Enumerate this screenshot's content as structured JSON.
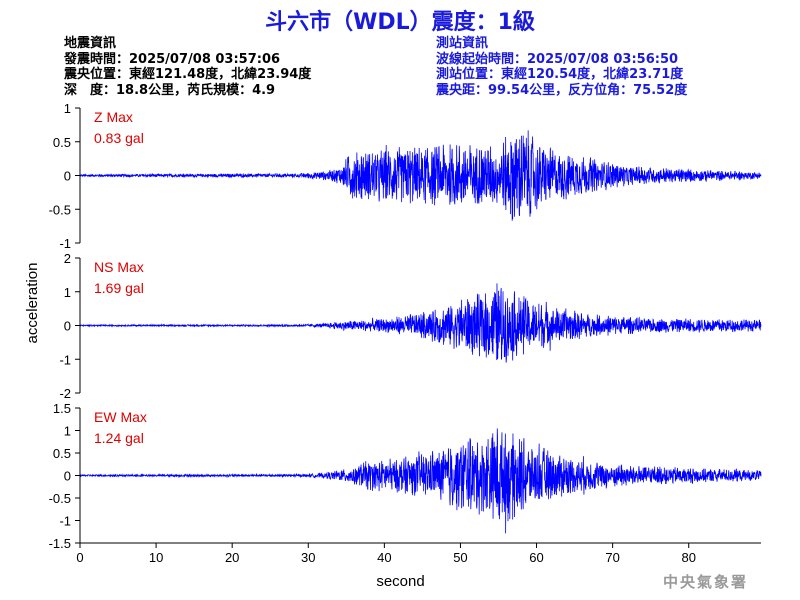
{
  "title": "斗六市（WDL）震度：1級",
  "earthquake_info": {
    "heading": "地震資訊",
    "origin_time": "發震時間：2025/07/08 03:57:06",
    "epicenter": "震央位置：東經121.48度，北緯23.94度",
    "depth_magnitude": "深　度：18.8公里，芮氏規模：4.9"
  },
  "station_info": {
    "heading": "測站資訊",
    "wave_start": "波線起始時間：2025/07/08 03:56:50",
    "station_location": "測站位置：東經120.54度，北緯23.71度",
    "distance_azimuth": "震央距：99.54公里，反方位角：75.52度"
  },
  "agency": "中央氣象署",
  "colors": {
    "trace": "#0000ff",
    "max_label": "#e00000",
    "title": "#1a1adc",
    "station_info": "#1a1adc"
  },
  "chart_data": [
    {
      "type": "line",
      "component": "Z",
      "max_label": "Z Max",
      "max_value": "0.83 gal",
      "ylim": [
        -1,
        1
      ],
      "yticks": [
        -1,
        -0.5,
        0,
        0.5,
        1
      ],
      "ytick_labels": [
        "-1",
        "-0.5",
        "0",
        "0.5",
        "1"
      ],
      "envelope": [
        [
          0,
          0.02
        ],
        [
          29,
          0.03
        ],
        [
          31,
          0.06
        ],
        [
          33,
          0.08
        ],
        [
          34.5,
          0.15
        ],
        [
          35.5,
          0.38
        ],
        [
          38,
          0.4
        ],
        [
          45,
          0.45
        ],
        [
          50,
          0.5
        ],
        [
          55,
          0.45
        ],
        [
          57,
          0.75
        ],
        [
          58,
          0.75
        ],
        [
          62,
          0.4
        ],
        [
          68,
          0.25
        ],
        [
          72,
          0.15
        ],
        [
          80,
          0.1
        ],
        [
          89.5,
          0.05
        ]
      ]
    },
    {
      "type": "line",
      "component": "NS",
      "max_label": "NS Max",
      "max_value": "1.69 gal",
      "ylim": [
        -2,
        2
      ],
      "yticks": [
        -2,
        -1,
        0,
        1,
        2
      ],
      "ytick_labels": [
        "-2",
        "-1",
        "0",
        "1",
        "2"
      ],
      "envelope": [
        [
          0,
          0.02
        ],
        [
          29,
          0.03
        ],
        [
          32,
          0.06
        ],
        [
          35,
          0.15
        ],
        [
          40,
          0.2
        ],
        [
          45,
          0.4
        ],
        [
          50,
          0.8
        ],
        [
          53,
          1.0
        ],
        [
          54.5,
          1.35
        ],
        [
          56,
          1.25
        ],
        [
          58,
          0.9
        ],
        [
          62,
          0.6
        ],
        [
          67,
          0.35
        ],
        [
          75,
          0.22
        ],
        [
          85,
          0.2
        ],
        [
          89.5,
          0.18
        ]
      ]
    },
    {
      "type": "line",
      "component": "EW",
      "max_label": "EW Max",
      "max_value": "1.24 gal",
      "ylim": [
        -1.5,
        1.5
      ],
      "yticks": [
        -1.5,
        -1,
        -0.5,
        0,
        0.5,
        1,
        1.5
      ],
      "ytick_labels": [
        "-1.5",
        "-1",
        "-0.5",
        "0",
        "0.5",
        "1",
        "1.5"
      ],
      "envelope": [
        [
          0,
          0.02
        ],
        [
          29,
          0.03
        ],
        [
          32,
          0.06
        ],
        [
          35,
          0.15
        ],
        [
          38,
          0.35
        ],
        [
          42,
          0.4
        ],
        [
          47,
          0.55
        ],
        [
          50,
          0.85
        ],
        [
          53,
          0.9
        ],
        [
          55,
          1.2
        ],
        [
          57,
          1.0
        ],
        [
          60,
          0.7
        ],
        [
          65,
          0.4
        ],
        [
          72,
          0.25
        ],
        [
          80,
          0.18
        ],
        [
          89.5,
          0.12
        ]
      ]
    }
  ],
  "x_axis": {
    "label": "second",
    "xlim": [
      0,
      89.5
    ],
    "ticks": [
      0,
      10,
      20,
      30,
      40,
      50,
      60,
      70,
      80
    ],
    "tick_labels": [
      "0",
      "10",
      "20",
      "30",
      "40",
      "50",
      "60",
      "70",
      "80"
    ]
  },
  "y_axis": {
    "label": "acceleration"
  }
}
